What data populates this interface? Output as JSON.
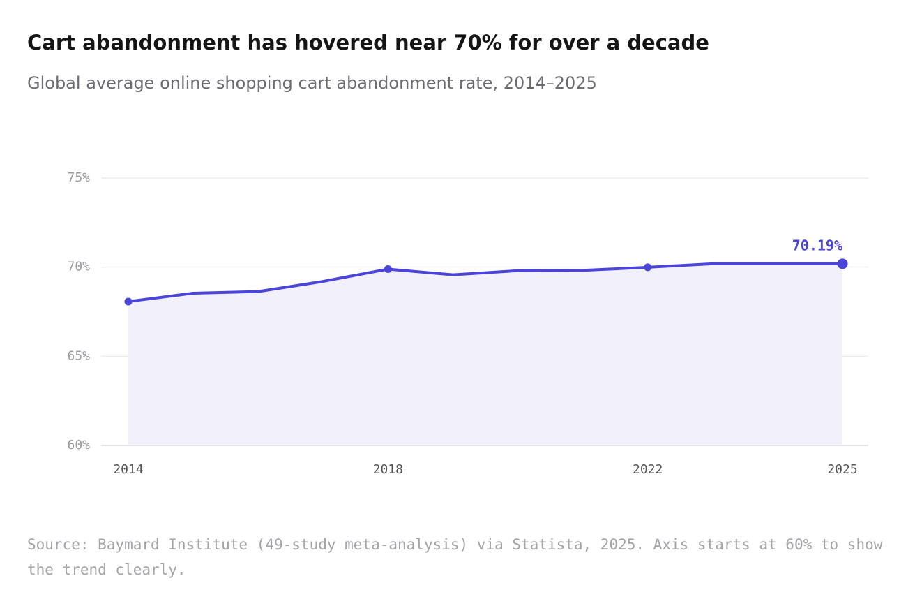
{
  "chart_data": {
    "type": "line",
    "title": "Cart abandonment has hovered near 70% for over a decade",
    "subtitle": "Global average online shopping cart abandonment rate, 2014–2025",
    "source": "Source: Baymard Institute (49-study meta-analysis) via Statista, 2025. Axis starts at 60% to show the trend clearly.",
    "x": [
      2014,
      2015,
      2016,
      2017,
      2018,
      2019,
      2020,
      2021,
      2022,
      2023,
      2024,
      2025
    ],
    "series": [
      {
        "color": "#4b44d8",
        "values": [
          68.07,
          68.54,
          68.63,
          69.2,
          69.89,
          69.57,
          69.8,
          69.82,
          69.99,
          70.19,
          70.19,
          70.19
        ],
        "value_labels": [
          null,
          null,
          null,
          null,
          null,
          null,
          null,
          null,
          null,
          null,
          null,
          "70.19%"
        ]
      }
    ],
    "area_color": "#f2f0fb",
    "xlim": [
      2014,
      2025
    ],
    "xticks": [
      2014,
      2018,
      2022,
      2025
    ],
    "ylim": [
      60,
      75
    ],
    "yticks": [
      {
        "value": 60,
        "label": "60%"
      },
      {
        "value": 65,
        "label": "65%"
      },
      {
        "value": 70,
        "label": "70%"
      },
      {
        "value": 75,
        "label": "75%"
      }
    ],
    "grid": true
  }
}
